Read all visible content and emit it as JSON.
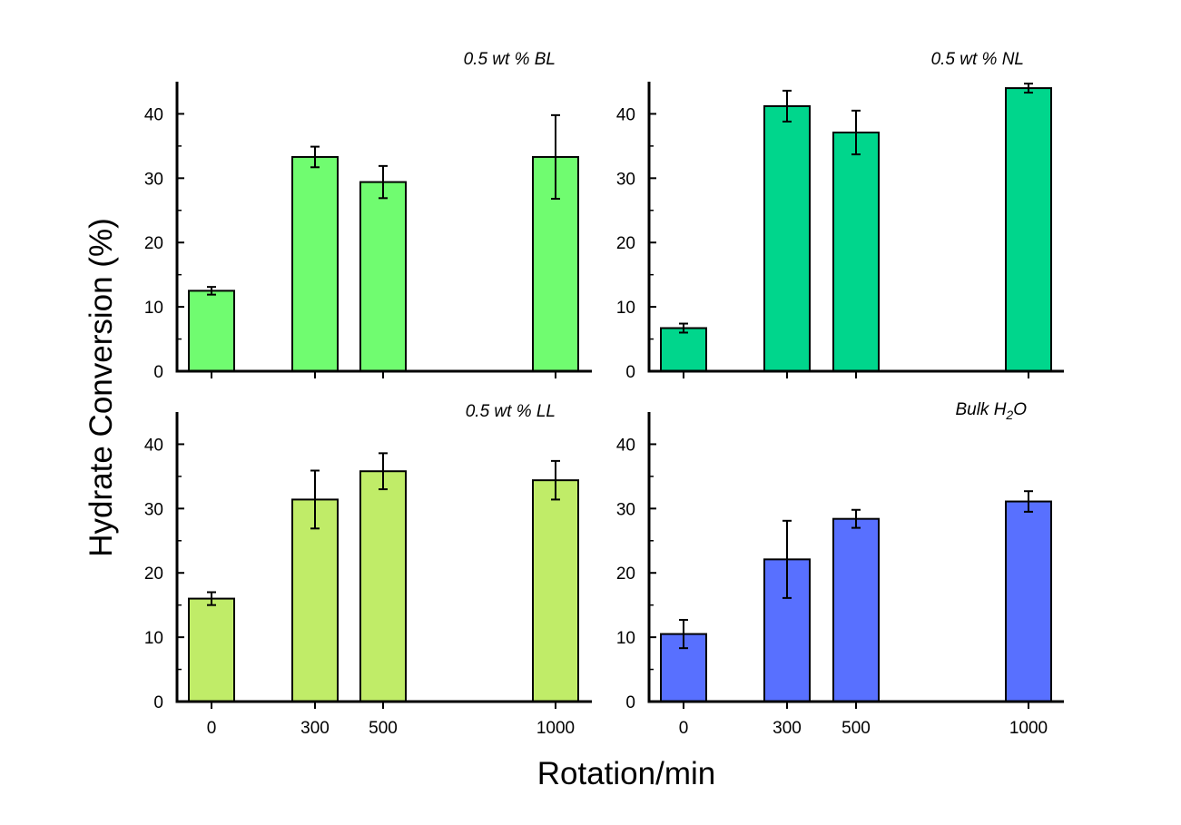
{
  "figure": {
    "ylabel": "Hydrate Conversion (%)",
    "xlabel": "Rotation/min"
  },
  "chart_data": [
    {
      "type": "bar",
      "title": "0.5 wt % BL",
      "categories": [
        "0",
        "300",
        "500",
        "1000"
      ],
      "x": [
        0,
        300,
        500,
        1000
      ],
      "values": [
        12.5,
        33.3,
        29.4,
        33.3
      ],
      "errors": [
        0.6,
        1.6,
        2.5,
        6.5
      ],
      "color": "#70fc70",
      "ylim": [
        0,
        45
      ],
      "yticks": [
        0,
        10,
        20,
        30,
        40
      ]
    },
    {
      "type": "bar",
      "title": "0.5 wt % NL",
      "categories": [
        "0",
        "300",
        "500",
        "1000"
      ],
      "x": [
        0,
        300,
        500,
        1000
      ],
      "values": [
        6.7,
        41.2,
        37.1,
        44.0
      ],
      "errors": [
        0.7,
        2.4,
        3.4,
        0.7
      ],
      "color": "#00d68c",
      "ylim": [
        0,
        45
      ],
      "yticks": [
        0,
        10,
        20,
        30,
        40
      ]
    },
    {
      "type": "bar",
      "title": "0.5 wt % LL",
      "categories": [
        "0",
        "300",
        "500",
        "1000"
      ],
      "x": [
        0,
        300,
        500,
        1000
      ],
      "values": [
        16.0,
        31.4,
        35.8,
        34.4
      ],
      "errors": [
        1.0,
        4.5,
        2.8,
        3.0
      ],
      "color": "#c0ec68",
      "ylim": [
        0,
        45
      ],
      "yticks": [
        0,
        10,
        20,
        30,
        40
      ]
    },
    {
      "type": "bar",
      "title": "Bulk H",
      "title_subscript": "2",
      "title_suffix": "O",
      "categories": [
        "0",
        "300",
        "500",
        "1000"
      ],
      "x": [
        0,
        300,
        500,
        1000
      ],
      "values": [
        10.5,
        22.1,
        28.4,
        31.1
      ],
      "errors": [
        2.2,
        6.0,
        1.4,
        1.6
      ],
      "color": "#5870ff",
      "ylim": [
        0,
        45
      ],
      "yticks": [
        0,
        10,
        20,
        30,
        40
      ]
    }
  ]
}
